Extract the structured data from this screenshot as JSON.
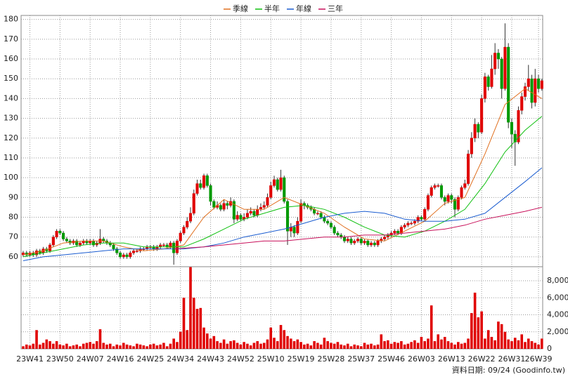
{
  "chart_data": {
    "type": "candlestick",
    "categories": [
      null,
      null,
      "23W41",
      null,
      null,
      null,
      null,
      null,
      null,
      null,
      null,
      "23W50",
      null,
      null,
      null,
      null,
      null,
      null,
      null,
      null,
      "24W07",
      null,
      null,
      null,
      null,
      null,
      null,
      null,
      null,
      "24W16",
      null,
      null,
      null,
      null,
      null,
      null,
      null,
      null,
      "24W25",
      null,
      null,
      null,
      null,
      null,
      null,
      null,
      null,
      "24W34",
      null,
      null,
      null,
      null,
      null,
      null,
      null,
      null,
      "24W43",
      null,
      null,
      null,
      null,
      null,
      null,
      null,
      null,
      "24W52",
      null,
      null,
      null,
      null,
      null,
      null,
      null,
      null,
      "25W10",
      null,
      null,
      null,
      null,
      null,
      null,
      null,
      null,
      "25W19",
      null,
      null,
      null,
      null,
      null,
      null,
      null,
      null,
      "25W28",
      null,
      null,
      null,
      null,
      null,
      null,
      null,
      null,
      "25W37",
      null,
      null,
      null,
      null,
      null,
      null,
      null,
      null,
      "25W46",
      null,
      null,
      null,
      null,
      null,
      null,
      null,
      null,
      "26W03",
      null,
      null,
      null,
      null,
      null,
      null,
      null,
      null,
      "26W13",
      null,
      null,
      null,
      null,
      null,
      null,
      null,
      null,
      "26W22",
      null,
      null,
      null,
      null,
      null,
      null,
      null,
      null,
      "26W31",
      null,
      null,
      null,
      null,
      null,
      null,
      null,
      "26W39",
      null
    ],
    "open": [
      61,
      62,
      61,
      62,
      61,
      63,
      62,
      64,
      63,
      66,
      70,
      73,
      72,
      69,
      68,
      67,
      68,
      66,
      67,
      68,
      67,
      68,
      66,
      67,
      69,
      68,
      67,
      66,
      64,
      62,
      60,
      61,
      60,
      62,
      63,
      63,
      64,
      64,
      65,
      65,
      64,
      65,
      66,
      66,
      65,
      67,
      62,
      68,
      72,
      75,
      78,
      82,
      92,
      97,
      95,
      101,
      96,
      88,
      85,
      86,
      84,
      87,
      86,
      88,
      79,
      81,
      79,
      80,
      82,
      83,
      81,
      84,
      85,
      86,
      90,
      96,
      99,
      94,
      100,
      88,
      73,
      75,
      72,
      78,
      87,
      86,
      85,
      84,
      82,
      82,
      80,
      78,
      77,
      75,
      72,
      71,
      70,
      68,
      69,
      67,
      68,
      69,
      67,
      68,
      66,
      67,
      66,
      68,
      69,
      70,
      71,
      72,
      73,
      72,
      75,
      76,
      77,
      77,
      78,
      80,
      79,
      84,
      91,
      95,
      96,
      96,
      90,
      88,
      91,
      89,
      84,
      90,
      95,
      97,
      112,
      120,
      127,
      123,
      140,
      151,
      146,
      155,
      163,
      160,
      145,
      166,
      128,
      122,
      118,
      134,
      141,
      146,
      150,
      138,
      150,
      145
    ],
    "high": [
      63,
      63,
      63,
      63,
      64,
      64,
      65,
      65,
      67,
      71,
      74,
      74,
      73,
      70,
      69,
      69,
      69,
      68,
      69,
      69,
      69,
      69,
      68,
      74,
      70,
      69,
      68,
      67,
      65,
      63,
      62,
      62,
      63,
      64,
      64,
      65,
      65,
      66,
      66,
      66,
      66,
      67,
      67,
      67,
      68,
      68,
      69,
      73,
      76,
      80,
      85,
      94,
      99,
      99,
      102,
      102,
      97,
      89,
      88,
      87,
      89,
      88,
      90,
      89,
      83,
      82,
      82,
      84,
      85,
      84,
      86,
      87,
      88,
      92,
      98,
      101,
      100,
      104,
      101,
      89,
      77,
      76,
      80,
      89,
      88,
      87,
      86,
      85,
      83,
      83,
      81,
      79,
      78,
      76,
      73,
      72,
      71,
      70,
      70,
      69,
      70,
      70,
      69,
      69,
      68,
      68,
      69,
      70,
      71,
      72,
      73,
      74,
      74,
      76,
      77,
      78,
      78,
      79,
      81,
      81,
      85,
      92,
      96,
      97,
      97,
      97,
      91,
      92,
      92,
      90,
      91,
      96,
      99,
      114,
      123,
      130,
      128,
      142,
      153,
      152,
      162,
      168,
      165,
      161,
      178,
      168,
      130,
      124,
      136,
      143,
      148,
      157,
      152,
      155,
      152,
      150
    ],
    "low": [
      60,
      60,
      60,
      60,
      60,
      61,
      61,
      62,
      62,
      65,
      69,
      71,
      68,
      67,
      66,
      66,
      65,
      65,
      66,
      66,
      66,
      65,
      65,
      66,
      67,
      66,
      65,
      63,
      61,
      59,
      59,
      59,
      59,
      61,
      62,
      62,
      63,
      63,
      64,
      63,
      63,
      64,
      65,
      64,
      64,
      56,
      61,
      67,
      71,
      74,
      77,
      81,
      91,
      94,
      94,
      95,
      86,
      84,
      84,
      83,
      83,
      84,
      85,
      77,
      78,
      78,
      78,
      79,
      81,
      80,
      80,
      83,
      84,
      85,
      89,
      95,
      93,
      93,
      87,
      66,
      70,
      70,
      71,
      77,
      84,
      84,
      83,
      81,
      81,
      79,
      77,
      76,
      74,
      71,
      70,
      69,
      67,
      67,
      66,
      66,
      67,
      66,
      66,
      65,
      65,
      65,
      65,
      67,
      68,
      69,
      70,
      71,
      71,
      71,
      74,
      75,
      76,
      76,
      77,
      78,
      78,
      83,
      90,
      94,
      95,
      89,
      86,
      87,
      87,
      80,
      83,
      89,
      94,
      96,
      110,
      118,
      120,
      122,
      138,
      144,
      145,
      152,
      155,
      140,
      144,
      125,
      115,
      106,
      117,
      132,
      139,
      144,
      135,
      136,
      143,
      144
    ],
    "close": [
      62,
      61,
      62,
      61,
      63,
      62,
      64,
      63,
      66,
      70,
      73,
      72,
      69,
      68,
      67,
      68,
      66,
      67,
      68,
      67,
      68,
      66,
      67,
      69,
      68,
      67,
      66,
      64,
      62,
      60,
      61,
      60,
      62,
      63,
      63,
      64,
      64,
      65,
      65,
      64,
      65,
      66,
      66,
      65,
      67,
      62,
      68,
      72,
      75,
      78,
      82,
      92,
      97,
      95,
      101,
      96,
      88,
      85,
      86,
      84,
      87,
      86,
      88,
      79,
      81,
      79,
      80,
      82,
      83,
      81,
      84,
      85,
      86,
      90,
      96,
      99,
      94,
      100,
      88,
      73,
      75,
      72,
      78,
      87,
      86,
      85,
      84,
      82,
      82,
      80,
      78,
      77,
      75,
      72,
      71,
      70,
      68,
      69,
      67,
      68,
      69,
      67,
      68,
      66,
      67,
      66,
      68,
      69,
      70,
      71,
      72,
      73,
      72,
      75,
      76,
      77,
      77,
      78,
      80,
      79,
      84,
      91,
      95,
      96,
      96,
      90,
      88,
      91,
      89,
      84,
      90,
      95,
      97,
      112,
      120,
      127,
      123,
      140,
      151,
      146,
      155,
      163,
      160,
      145,
      166,
      128,
      122,
      118,
      134,
      141,
      146,
      150,
      138,
      150,
      145,
      149
    ],
    "volume": [
      300,
      500,
      400,
      600,
      2200,
      500,
      700,
      1100,
      900,
      600,
      900,
      500,
      400,
      600,
      300,
      400,
      500,
      300,
      600,
      700,
      800,
      600,
      900,
      2300,
      700,
      500,
      600,
      300,
      500,
      400,
      700,
      500,
      400,
      300,
      600,
      500,
      400,
      300,
      500,
      600,
      400,
      500,
      700,
      300,
      600,
      1200,
      800,
      2000,
      6000,
      2200,
      9600,
      6000,
      4700,
      4800,
      2500,
      1800,
      1200,
      1500,
      900,
      700,
      1100,
      600,
      900,
      1000,
      700,
      500,
      800,
      600,
      400,
      700,
      900,
      600,
      700,
      1100,
      2500,
      1300,
      900,
      2800,
      2200,
      1500,
      1200,
      900,
      1100,
      800,
      500,
      600,
      400,
      900,
      700,
      500,
      1300,
      900,
      700,
      600,
      800,
      500,
      400,
      600,
      300,
      500,
      400,
      300,
      700,
      500,
      600,
      400,
      500,
      1700,
      900,
      1000,
      600,
      800,
      700,
      900,
      500,
      600,
      800,
      1000,
      700,
      1400,
      900,
      1200,
      5100,
      900,
      1700,
      1100,
      1400,
      900,
      700,
      500,
      800,
      600,
      700,
      1200,
      4200,
      6600,
      3700,
      4400,
      1200,
      2200,
      1400,
      1000,
      3200,
      2900,
      2000,
      1100,
      900,
      1300,
      1000,
      1700,
      800,
      1200,
      900,
      700,
      500,
      1200
    ],
    "up_color": "#e00000",
    "down_color": "#009900",
    "volume_color": "#e00000",
    "series": [
      {
        "name": "季線",
        "color": "#e07020",
        "x": [
          0,
          6,
          12,
          18,
          24,
          30,
          36,
          42,
          48,
          54,
          60,
          66,
          72,
          78,
          84,
          90,
          96,
          102,
          108,
          114,
          120,
          126,
          132,
          138,
          144,
          150,
          155
        ],
        "values": [
          61,
          63,
          67,
          68,
          68,
          65,
          63,
          64,
          66,
          80,
          89,
          84,
          84,
          90,
          86,
          82,
          75,
          69,
          68,
          73,
          78,
          87,
          90,
          112,
          137,
          145,
          140
        ]
      },
      {
        "name": "半年",
        "color": "#10c010",
        "x": [
          0,
          6,
          12,
          18,
          24,
          30,
          36,
          42,
          48,
          54,
          60,
          66,
          72,
          78,
          84,
          90,
          96,
          102,
          108,
          114,
          120,
          126,
          132,
          138,
          144,
          150,
          155
        ],
        "values": [
          60,
          62,
          64,
          66,
          67,
          67,
          65,
          65,
          65,
          69,
          74,
          79,
          82,
          85,
          86,
          84,
          80,
          75,
          71,
          70,
          73,
          78,
          84,
          97,
          113,
          124,
          131
        ]
      },
      {
        "name": "年線",
        "color": "#1a5cd0",
        "x": [
          0,
          6,
          12,
          18,
          24,
          30,
          36,
          42,
          48,
          54,
          60,
          66,
          72,
          78,
          84,
          90,
          96,
          102,
          108,
          114,
          120,
          126,
          132,
          138,
          144,
          150,
          155
        ],
        "values": [
          58,
          60,
          61,
          62,
          63,
          64,
          64,
          64,
          64,
          65,
          67,
          70,
          72,
          74,
          77,
          80,
          82,
          83,
          82,
          79,
          78,
          78,
          79,
          82,
          90,
          98,
          105
        ]
      },
      {
        "name": "三年",
        "color": "#c8105a",
        "x": [
          45,
          54,
          60,
          66,
          72,
          78,
          84,
          90,
          96,
          102,
          108,
          114,
          120,
          126,
          132,
          138,
          144,
          150,
          155
        ],
        "values": [
          64,
          65,
          66,
          67,
          68,
          68,
          69,
          70,
          70,
          71,
          71,
          72,
          73,
          74,
          76,
          79,
          81,
          83,
          85
        ]
      }
    ],
    "ylim": [
      55,
      182
    ],
    "yticks": [
      60,
      70,
      80,
      90,
      100,
      110,
      120,
      130,
      140,
      150,
      160,
      170,
      180
    ],
    "y2lim": [
      0,
      9650
    ],
    "y2ticks": [
      0,
      {
        "value": 2000,
        "label": "2,000"
      },
      {
        "value": 4000,
        "label": "4,000"
      },
      {
        "value": 6000,
        "label": "6,000"
      },
      {
        "value": 8000,
        "label": "8,000"
      }
    ],
    "grid": true,
    "legend": "top",
    "source": "資料日期: 09/24 (Goodinfo.tw)"
  }
}
